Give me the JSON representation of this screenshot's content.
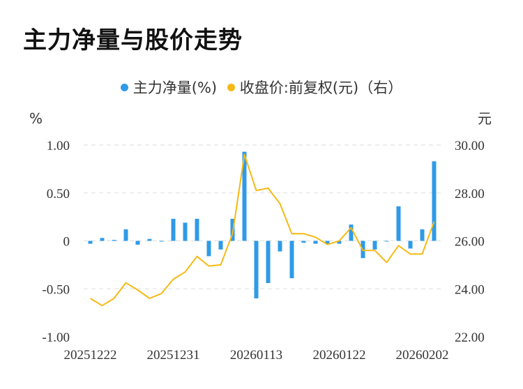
{
  "title": "主力净量与股价走势",
  "legend": {
    "series1": "主力净量(%)",
    "series2": "收盘价:前复权(元)（右）"
  },
  "colors": {
    "bar": "#2f9be8",
    "line": "#f5b914",
    "grid": "#dddddd"
  },
  "chart_data": {
    "type": "bar+line",
    "title": "主力净量与股价走势",
    "left_axis": {
      "unit": "%",
      "ylim": [
        -1.0,
        1.0
      ],
      "ticks": [
        "1.00",
        "0.50",
        "0",
        "-0.50",
        "-1.00"
      ],
      "tick_values": [
        1.0,
        0.5,
        0,
        -0.5,
        -1.0
      ]
    },
    "right_axis": {
      "unit": "元",
      "ylim": [
        22.0,
        30.0
      ],
      "ticks": [
        "30.00",
        "28.00",
        "26.00",
        "24.00",
        "22.00"
      ],
      "tick_values": [
        30,
        28,
        26,
        24,
        22
      ]
    },
    "x_tick_labels": [
      {
        "label": "20251222",
        "index": 0
      },
      {
        "label": "20251231",
        "index": 7
      },
      {
        "label": "20260113",
        "index": 14
      },
      {
        "label": "20260122",
        "index": 21
      },
      {
        "label": "20260202",
        "index": 28
      }
    ],
    "grid": true,
    "legend_position": "top-center",
    "series": [
      {
        "name": "主力净量(%)",
        "type": "bar",
        "axis": "left",
        "values": [
          -0.03,
          0.03,
          0.01,
          0.12,
          -0.04,
          0.02,
          0.0,
          0.23,
          0.19,
          0.23,
          -0.16,
          -0.09,
          0.23,
          0.93,
          -0.6,
          -0.44,
          -0.11,
          -0.39,
          -0.02,
          -0.03,
          -0.03,
          -0.03,
          0.17,
          -0.18,
          -0.09,
          0.0,
          0.36,
          -0.08,
          0.12,
          0.83
        ]
      },
      {
        "name": "收盘价:前复权(元)（右）",
        "type": "line",
        "axis": "right",
        "values": [
          23.6,
          23.3,
          23.6,
          24.25,
          23.95,
          23.6,
          23.8,
          24.4,
          24.7,
          25.35,
          24.95,
          25.0,
          26.3,
          29.6,
          28.1,
          28.2,
          27.55,
          26.3,
          26.3,
          26.15,
          25.85,
          26.0,
          26.55,
          25.6,
          25.6,
          25.1,
          25.8,
          25.45,
          25.45,
          26.8
        ]
      }
    ]
  }
}
